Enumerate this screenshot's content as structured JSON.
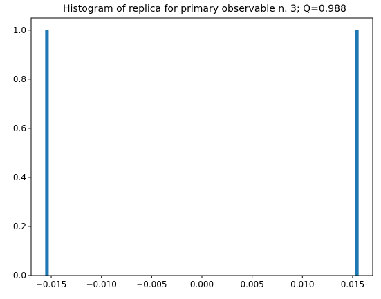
{
  "chart_data": {
    "type": "bar",
    "title": "Histogram of replica for primary observable n. 3; Q=0.988",
    "xlabel": "",
    "ylabel": "",
    "bars": [
      {
        "x_left": -0.0156,
        "x_right": -0.01525,
        "value": 1.0
      },
      {
        "x_left": 0.01525,
        "x_right": 0.0156,
        "value": 1.0
      }
    ],
    "xlim": [
      -0.017,
      0.017
    ],
    "ylim": [
      0,
      1.05
    ],
    "x_ticks": [
      {
        "value": -0.015,
        "label": "−0.015"
      },
      {
        "value": -0.01,
        "label": "−0.010"
      },
      {
        "value": -0.005,
        "label": "−0.005"
      },
      {
        "value": 0.0,
        "label": "0.000"
      },
      {
        "value": 0.005,
        "label": "0.005"
      },
      {
        "value": 0.01,
        "label": "0.010"
      },
      {
        "value": 0.015,
        "label": "0.015"
      }
    ],
    "y_ticks": [
      {
        "value": 0.0,
        "label": "0.0"
      },
      {
        "value": 0.2,
        "label": "0.2"
      },
      {
        "value": 0.4,
        "label": "0.4"
      },
      {
        "value": 0.6,
        "label": "0.6"
      },
      {
        "value": 0.8,
        "label": "0.8"
      },
      {
        "value": 1.0,
        "label": "1.0"
      }
    ],
    "bar_color": "#1f77b4",
    "grid": false,
    "legend": "none"
  }
}
